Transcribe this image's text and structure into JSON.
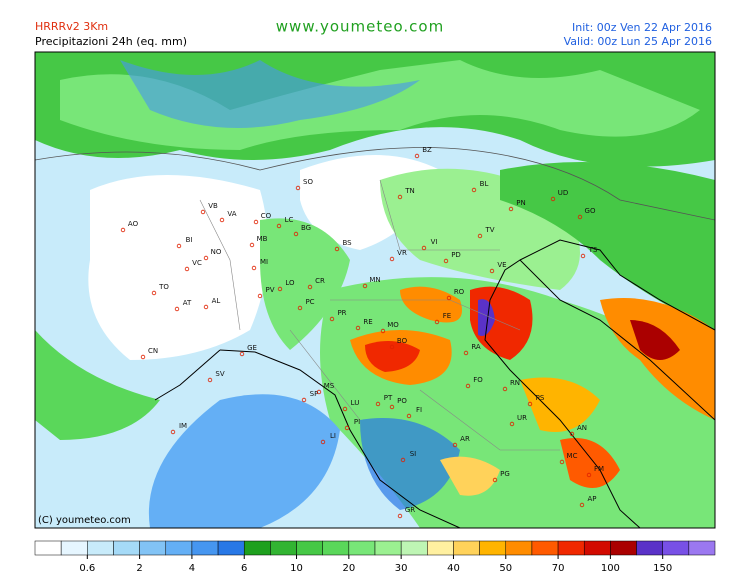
{
  "header": {
    "model": "HRRRv2 3Km",
    "field": "Precipitazioni 24h (eq. mm)",
    "site": "www.youmeteo.com",
    "init": "Init: 00z Ven  22 Apr 2016",
    "valid": "Valid: 00z Lun  25 Apr 2016"
  },
  "copyright": "(C) youmeteo.com",
  "cities": [
    "BZ",
    "SO",
    "TN",
    "BL",
    "UD",
    "PN",
    "GO",
    "AO",
    "VB",
    "VA",
    "CO",
    "LC",
    "BG",
    "BS",
    "VR",
    "VI",
    "TV",
    "PD",
    "VE",
    "TS",
    "BI",
    "NO",
    "MI",
    "MB",
    "TO",
    "VC",
    "AT",
    "AL",
    "PV",
    "LO",
    "CR",
    "MN",
    "PC",
    "RO",
    "PR",
    "RE",
    "MO",
    "FE",
    "BO",
    "RA",
    "FO",
    "RN",
    "CN",
    "GE",
    "SV",
    "IM",
    "SP",
    "MS",
    "LU",
    "PT",
    "PO",
    "FI",
    "PS",
    "AN",
    "UR",
    "AR",
    "PI",
    "LI",
    "SI",
    "PG",
    "MC",
    "FM",
    "AP",
    "GR"
  ],
  "legend": {
    "colors": [
      "#ffffff",
      "#e6f6ff",
      "#c8ebfa",
      "#a5daf7",
      "#82c3f5",
      "#64aff5",
      "#4696f0",
      "#2878e6",
      "#1ea01e",
      "#32b432",
      "#46c846",
      "#5ad75a",
      "#78e678",
      "#9bf091",
      "#bef5b4",
      "#fff0a0",
      "#ffd25a",
      "#ffb400",
      "#ff8c00",
      "#ff5a00",
      "#f02800",
      "#d20a00",
      "#aa0000",
      "#5a32c8",
      "#7850e6",
      "#9b78f0"
    ],
    "ticks": [
      0.6,
      2,
      4,
      6,
      10,
      20,
      30,
      40,
      50,
      70,
      100,
      150
    ]
  }
}
